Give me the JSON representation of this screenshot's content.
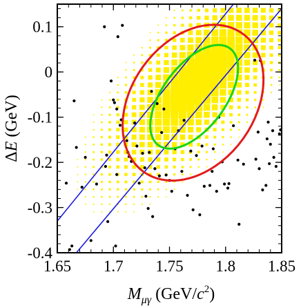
{
  "chart_data": {
    "type": "scatter",
    "xlabel_symbol": "M",
    "xlabel_subscript": "μγ",
    "xlabel_unit_open": "(GeV/",
    "xlabel_unit_c": "c",
    "xlabel_unit_exp": "2",
    "xlabel_unit_close": ")",
    "ylabel_delta": "Δ",
    "ylabel_symbol": "E",
    "ylabel_unit": "(GeV)",
    "xlim": [
      1.65,
      1.85
    ],
    "ylim": [
      -0.4,
      0.15
    ],
    "x_ticks": [
      1.65,
      1.7,
      1.75,
      1.8,
      1.85
    ],
    "x_tick_labels": [
      "1.65",
      "1.7",
      "1.75",
      "1.8",
      "1.85"
    ],
    "y_ticks": [
      0.1,
      0,
      -0.1,
      -0.2,
      -0.3,
      -0.4
    ],
    "y_tick_labels": [
      "0.1",
      "0",
      "-0.1",
      "-0.2",
      "-0.3",
      "-0.4"
    ],
    "grid": false,
    "colors": {
      "frame": "#000000",
      "band": "#1a1adf",
      "outer_ellipse": "#e21b1b",
      "inner_ellipse": "#18d418",
      "signal": "#ffee00",
      "data_points": "#000000"
    },
    "band_lines": [
      {
        "x": [
          1.65,
          1.807
        ],
        "y": [
          -0.33,
          0.15
        ]
      },
      {
        "x": [
          1.667,
          1.85
        ],
        "y": [
          -0.4,
          0.14
        ]
      }
    ],
    "outer_ellipse": {
      "center": [
        1.771,
        -0.068
      ],
      "major_end": [
        1.815,
        0.085
      ],
      "minor_half_width": 0.055
    },
    "inner_ellipse": {
      "center": [
        1.772,
        -0.055
      ],
      "major_end": [
        1.804,
        0.052
      ],
      "minor_half_width": 0.028
    },
    "signal_mc": {
      "x_center": 1.777,
      "y_center": -0.015,
      "sigma_major": 0.055,
      "sigma_minor": 0.022,
      "x_step": 0.0072,
      "y_step": 0.0165
    },
    "data_points": [
      [
        1.658,
        -0.246
      ],
      [
        1.661,
        -0.393
      ],
      [
        1.663,
        -0.385
      ],
      [
        1.665,
        -0.064
      ],
      [
        1.667,
        -0.167
      ],
      [
        1.672,
        -0.255
      ],
      [
        1.675,
        -0.189
      ],
      [
        1.68,
        -0.373
      ],
      [
        1.685,
        -0.248
      ],
      [
        1.692,
        0.1
      ],
      [
        1.693,
        -0.209
      ],
      [
        1.695,
        -0.331
      ],
      [
        1.694,
        -0.184
      ],
      [
        1.698,
        -0.02
      ],
      [
        1.7,
        -0.062
      ],
      [
        1.701,
        -0.068
      ],
      [
        1.703,
        -0.082
      ],
      [
        1.702,
        -0.385
      ],
      [
        1.704,
        0.078
      ],
      [
        1.703,
        -0.227
      ],
      [
        1.708,
        0.103
      ],
      [
        1.707,
        -0.106
      ],
      [
        1.706,
        -0.118
      ],
      [
        1.712,
        -0.152
      ],
      [
        1.713,
        -0.178
      ],
      [
        1.714,
        -0.187
      ],
      [
        1.716,
        -0.198
      ],
      [
        1.719,
        -0.113
      ],
      [
        1.721,
        -0.164
      ],
      [
        1.723,
        -0.246
      ],
      [
        1.726,
        -0.18
      ],
      [
        1.728,
        -0.212
      ],
      [
        1.729,
        -0.275
      ],
      [
        1.731,
        -0.302
      ],
      [
        1.732,
        -0.178
      ],
      [
        1.734,
        -0.043
      ],
      [
        1.735,
        -0.32
      ],
      [
        1.737,
        -0.214
      ],
      [
        1.739,
        -0.07
      ],
      [
        1.741,
        -0.23
      ],
      [
        1.743,
        -0.134
      ],
      [
        1.745,
        -0.082
      ],
      [
        1.747,
        -0.228
      ],
      [
        1.75,
        -0.24
      ],
      [
        1.752,
        -0.264
      ],
      [
        1.755,
        -0.17
      ],
      [
        1.758,
        -0.13
      ],
      [
        1.761,
        -0.22
      ],
      [
        1.763,
        -0.107
      ],
      [
        1.766,
        -0.273
      ],
      [
        1.769,
        -0.175
      ],
      [
        1.771,
        -0.305
      ],
      [
        1.774,
        -0.185
      ],
      [
        1.777,
        -0.316
      ],
      [
        1.779,
        -0.164
      ],
      [
        1.781,
        -0.253
      ],
      [
        1.786,
        -0.251
      ],
      [
        1.788,
        -0.22
      ],
      [
        1.789,
        -0.17
      ],
      [
        1.792,
        -0.264
      ],
      [
        1.794,
        -0.1
      ],
      [
        1.797,
        -0.199
      ],
      [
        1.799,
        -0.248
      ],
      [
        1.802,
        -0.257
      ],
      [
        1.803,
        -0.247
      ],
      [
        1.807,
        -0.119
      ],
      [
        1.811,
        -0.195
      ],
      [
        1.812,
        -0.337
      ],
      [
        1.816,
        -0.204
      ],
      [
        1.826,
        0.026
      ],
      [
        1.831,
        0.025
      ],
      [
        1.829,
        -0.133
      ],
      [
        1.827,
        -0.193
      ],
      [
        1.83,
        -0.214
      ],
      [
        1.833,
        -0.261
      ],
      [
        1.838,
        -0.111
      ],
      [
        1.837,
        -0.148
      ],
      [
        1.84,
        -0.16
      ],
      [
        1.842,
        -0.13
      ],
      [
        1.843,
        -0.189
      ],
      [
        1.845,
        -0.209
      ],
      [
        1.848,
        -0.137
      ],
      [
        1.849,
        -0.128
      ],
      [
        1.836,
        -0.251
      ],
      [
        1.839,
        -0.203
      ]
    ]
  }
}
